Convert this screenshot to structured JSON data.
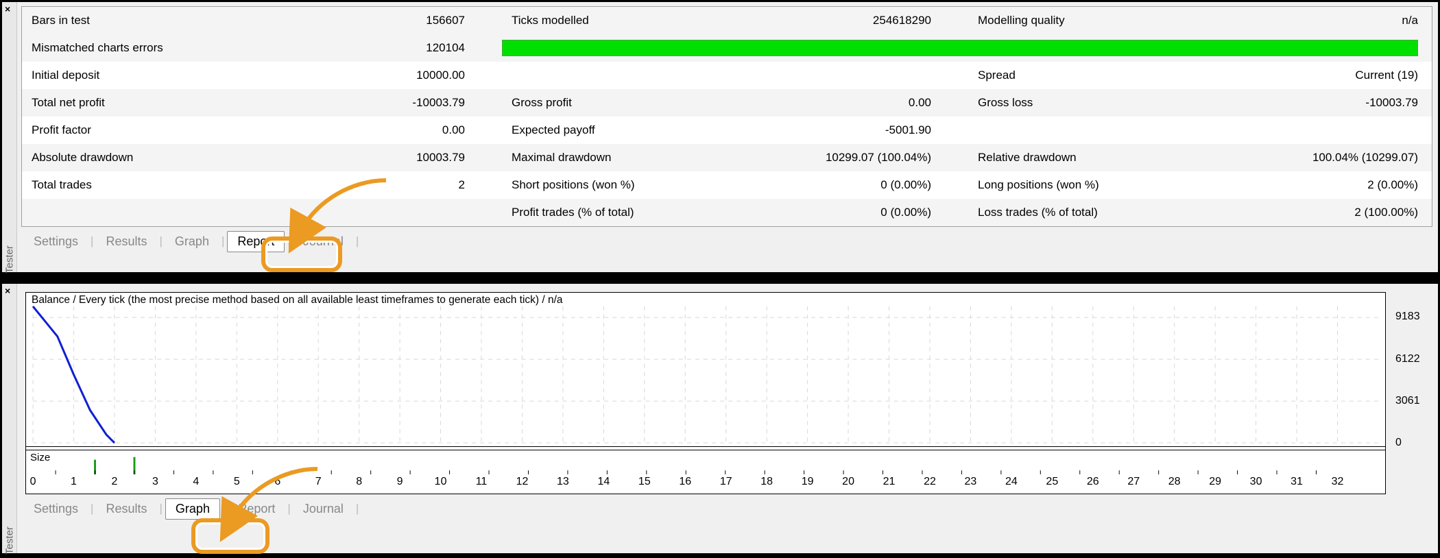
{
  "colors": {
    "panel_bg": "#f0f0f0",
    "row_alt": "#f4f4f4",
    "row": "#ffffff",
    "border": "#a0a0a0",
    "progress": "#00e000",
    "highlight": "#eb9a22",
    "chart_line": "#1020d0",
    "grid": "#d8d8d8",
    "axis_text": "#000000"
  },
  "tester_label": "Tester",
  "report": {
    "rows": [
      {
        "c1l": "Bars in test",
        "c1r": "156607",
        "c2l": "Ticks modelled",
        "c2r": "254618290",
        "c3l": "Modelling quality",
        "c3r": "n/a"
      },
      {
        "c1l": "Mismatched charts errors",
        "c1r": "120104",
        "progress": true
      },
      {
        "c1l": "Initial deposit",
        "c1r": "10000.00",
        "c2l": "",
        "c2r": "",
        "c3l": "Spread",
        "c3r": "Current (19)"
      },
      {
        "c1l": "Total net profit",
        "c1r": "-10003.79",
        "c2l": "Gross profit",
        "c2r": "0.00",
        "c3l": "Gross loss",
        "c3r": "-10003.79"
      },
      {
        "c1l": "Profit factor",
        "c1r": "0.00",
        "c2l": "Expected payoff",
        "c2r": "-5001.90",
        "c3l": "",
        "c3r": ""
      },
      {
        "c1l": "Absolute drawdown",
        "c1r": "10003.79",
        "c2l": "Maximal drawdown",
        "c2r": "10299.07 (100.04%)",
        "c3l": "Relative drawdown",
        "c3r": "100.04% (10299.07)"
      },
      {
        "c1l": "Total trades",
        "c1r": "2",
        "c2l": "Short positions (won %)",
        "c2r": "0 (0.00%)",
        "c3l": "Long positions (won %)",
        "c3r": "2 (0.00%)"
      },
      {
        "c1l": "",
        "c1r": "",
        "c2l": "Profit trades (% of total)",
        "c2r": "0 (0.00%)",
        "c3l": "Loss trades (% of total)",
        "c3r": "2 (100.00%)"
      }
    ],
    "tabs": [
      "Settings",
      "Results",
      "Graph",
      "Report",
      "Journal"
    ],
    "active_tab": "Report"
  },
  "graph": {
    "title": "Balance / Every tick (the most precise method based on all available least timeframes to generate each tick) / n/a",
    "ylim": [
      0,
      10000
    ],
    "yticks": [
      9183,
      6122,
      3061,
      0
    ],
    "xlim": [
      0,
      33
    ],
    "xticks": [
      0,
      1,
      2,
      3,
      4,
      5,
      6,
      7,
      8,
      9,
      10,
      11,
      12,
      13,
      14,
      15,
      16,
      17,
      18,
      19,
      20,
      21,
      22,
      23,
      24,
      25,
      26,
      27,
      28,
      29,
      30,
      31,
      32
    ],
    "balance_series": {
      "x": [
        0,
        0.6,
        1.0,
        1.4,
        1.8,
        2.0
      ],
      "y": [
        10000,
        7800,
        5000,
        2400,
        600,
        0
      ],
      "color": "#1020d0",
      "width": 3
    },
    "size_bars": {
      "x": [
        1,
        2
      ],
      "h": [
        22,
        26
      ],
      "color": "#1a9a1a"
    },
    "size_label": "Size",
    "tabs": [
      "Settings",
      "Results",
      "Graph",
      "Report",
      "Journal"
    ],
    "active_tab": "Graph"
  }
}
